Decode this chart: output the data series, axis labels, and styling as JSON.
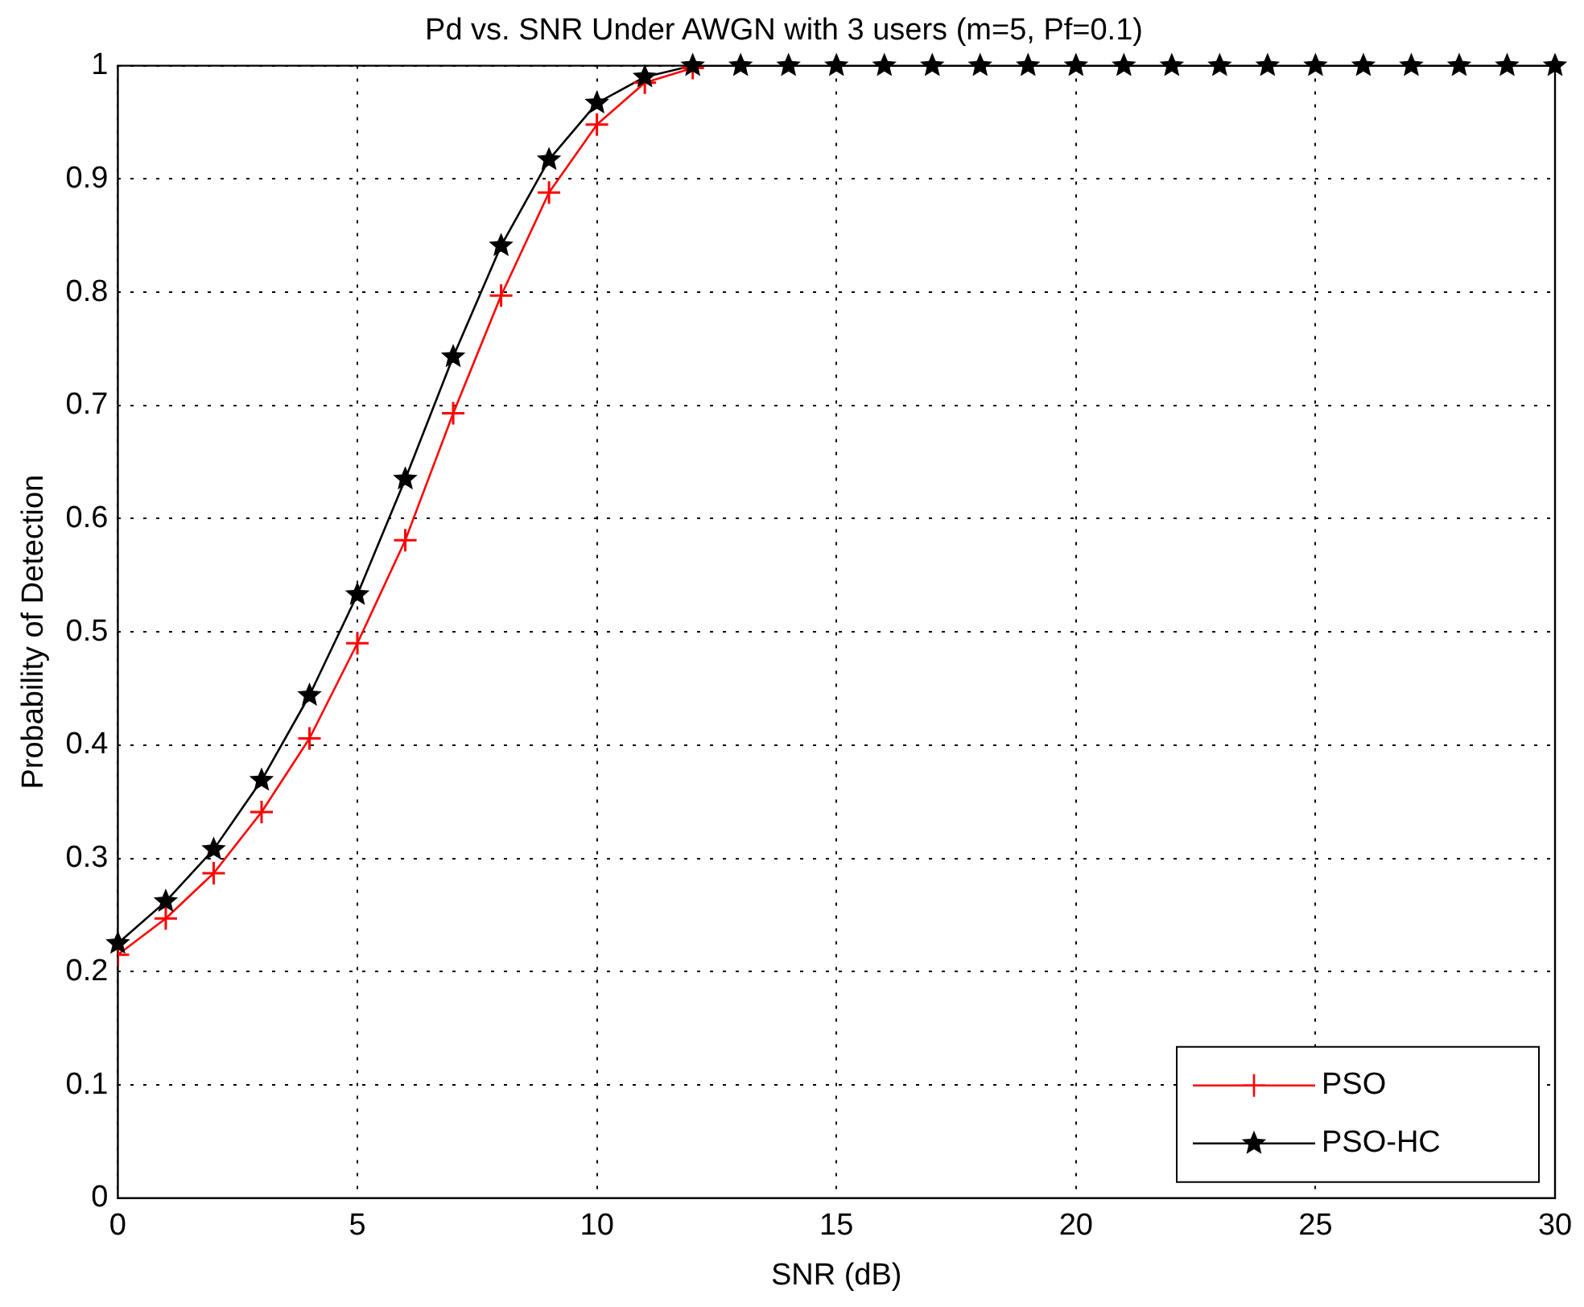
{
  "chart_data": {
    "type": "line",
    "title": "Pd vs. SNR Under AWGN with 3 users (m=5, Pf=0.1)",
    "xlabel": "SNR (dB)",
    "ylabel": "Probability of Detection",
    "x": [
      0,
      1,
      2,
      3,
      4,
      5,
      6,
      7,
      8,
      9,
      10,
      11,
      12,
      13,
      14,
      15,
      16,
      17,
      18,
      19,
      20,
      21,
      22,
      23,
      24,
      25,
      26,
      27,
      28,
      29,
      30
    ],
    "series": [
      {
        "name": "PSO",
        "color": "#ff0000",
        "marker": "cross",
        "values": [
          0.215,
          0.247,
          0.287,
          0.341,
          0.406,
          0.49,
          0.581,
          0.693,
          0.797,
          0.888,
          0.948,
          0.985,
          0.998,
          null,
          null,
          null,
          null,
          null,
          null,
          null,
          null,
          null,
          null,
          null,
          null,
          null,
          null,
          null,
          null,
          null,
          null
        ]
      },
      {
        "name": "PSO-HC",
        "color": "#000000",
        "marker": "star",
        "values": [
          0.225,
          0.262,
          0.308,
          0.369,
          0.444,
          0.533,
          0.635,
          0.743,
          0.841,
          0.917,
          0.967,
          0.99,
          1,
          1,
          1,
          1,
          1,
          1,
          1,
          1,
          1,
          1,
          1,
          1,
          1,
          1,
          1,
          1,
          1,
          1,
          1
        ]
      }
    ],
    "xlim": [
      0,
      30
    ],
    "xticks": [
      0,
      5,
      10,
      15,
      20,
      25,
      30
    ],
    "ylim": [
      0,
      1
    ],
    "yticks": [
      0,
      0.1,
      0.2,
      0.3,
      0.4,
      0.5,
      0.6,
      0.7,
      0.8,
      0.9,
      1
    ],
    "grid": true,
    "legend": "bottom right",
    "line_style": "solid"
  }
}
